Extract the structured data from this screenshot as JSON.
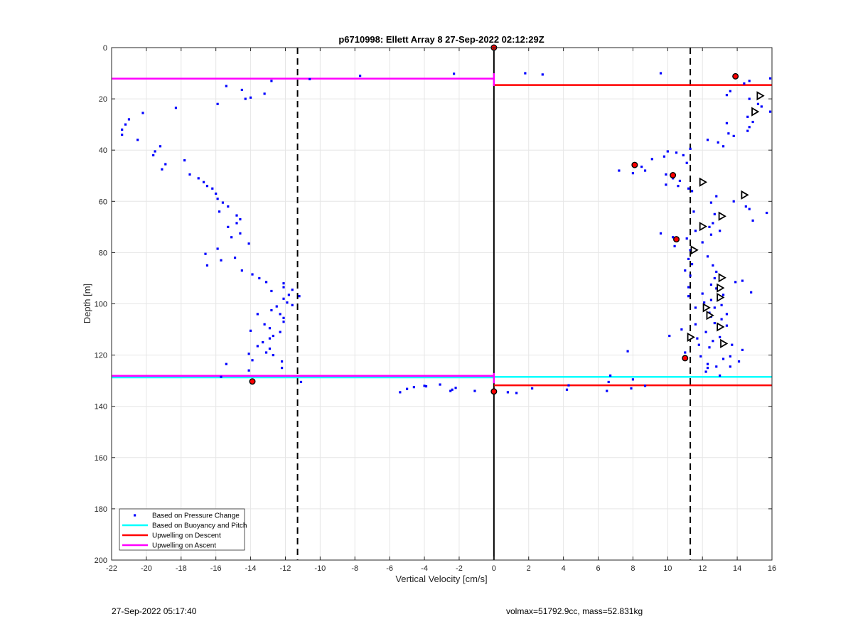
{
  "chart_data": {
    "type": "scatter",
    "title": "p6710998: Ellett Array 8 27-Sep-2022 02:12:29Z",
    "xlabel": "Vertical Velocity [cm/s]",
    "ylabel": "Depth [m]",
    "xlim": [
      -22,
      16
    ],
    "ylim": [
      0,
      200
    ],
    "y_reversed": true,
    "grid": true,
    "legend_position": "bottom-left",
    "x_ticks": [
      -22,
      -20,
      -18,
      -16,
      -14,
      -12,
      -10,
      -8,
      -6,
      -4,
      -2,
      0,
      2,
      4,
      6,
      8,
      10,
      12,
      14,
      16
    ],
    "y_ticks": [
      0,
      20,
      40,
      60,
      80,
      100,
      120,
      140,
      160,
      180,
      200
    ],
    "reference_lines": {
      "zero_line_x": 0,
      "dashed_lines_x": [
        -11.3,
        11.3
      ]
    },
    "series": [
      {
        "name": "Based on Pressure Change",
        "kind": "points",
        "color": "#0000ff",
        "points": [
          [
            -15.4,
            15
          ],
          [
            -14.5,
            16.5
          ],
          [
            -13.2,
            18
          ],
          [
            -14.3,
            20
          ],
          [
            -12.8,
            13
          ],
          [
            -14,
            19.5
          ],
          [
            -15.9,
            22
          ],
          [
            -20.2,
            25.5
          ],
          [
            -18.3,
            23.5
          ],
          [
            -21,
            28
          ],
          [
            -21.2,
            30
          ],
          [
            -21.4,
            32
          ],
          [
            -21.4,
            34
          ],
          [
            -20.5,
            36
          ],
          [
            -19.2,
            38.5
          ],
          [
            -19.5,
            40.5
          ],
          [
            -19.6,
            42
          ],
          [
            -18.9,
            45.5
          ],
          [
            -19.1,
            47.5
          ],
          [
            -17.8,
            44
          ],
          [
            -17.5,
            49.5
          ],
          [
            -17,
            51
          ],
          [
            -16.7,
            52.5
          ],
          [
            -16.5,
            54
          ],
          [
            -16.2,
            55
          ],
          [
            -16,
            57
          ],
          [
            -15.9,
            59
          ],
          [
            -15.6,
            60.5
          ],
          [
            -15.3,
            62
          ],
          [
            -15.8,
            64
          ],
          [
            -14.8,
            65.5
          ],
          [
            -14.6,
            67
          ],
          [
            -14.8,
            68.5
          ],
          [
            -15.3,
            70
          ],
          [
            -14.6,
            72.5
          ],
          [
            -15.1,
            74
          ],
          [
            -14.1,
            76.5
          ],
          [
            -15.9,
            78.5
          ],
          [
            -16.6,
            80.5
          ],
          [
            -15.7,
            83
          ],
          [
            -14.9,
            82
          ],
          [
            -16.5,
            85
          ],
          [
            -14.5,
            87
          ],
          [
            -13.9,
            88.5
          ],
          [
            -13.5,
            90
          ],
          [
            -13.1,
            91.5
          ],
          [
            -12.1,
            92
          ],
          [
            -12.1,
            93.5
          ],
          [
            -12.8,
            95
          ],
          [
            -11.6,
            94.5
          ],
          [
            -11.8,
            96.5
          ],
          [
            -11.2,
            97
          ],
          [
            -12.1,
            98
          ],
          [
            -11.9,
            99.5
          ],
          [
            -11.6,
            100.5
          ],
          [
            -12.5,
            101
          ],
          [
            -12.8,
            102.5
          ],
          [
            -12.3,
            104
          ],
          [
            -13.6,
            104
          ],
          [
            -12.1,
            105.5
          ],
          [
            -12.1,
            107
          ],
          [
            -13.2,
            108
          ],
          [
            -12.9,
            109.5
          ],
          [
            -14,
            110.5
          ],
          [
            -12.3,
            111
          ],
          [
            -12.7,
            112.5
          ],
          [
            -12.9,
            113.5
          ],
          [
            -13.3,
            115
          ],
          [
            -13.6,
            116.5
          ],
          [
            -12.9,
            117.5
          ],
          [
            -13.1,
            119
          ],
          [
            -14.1,
            119.5
          ],
          [
            -12.7,
            120
          ],
          [
            -13.9,
            122
          ],
          [
            -12.2,
            122.5
          ],
          [
            -15.4,
            123.5
          ],
          [
            -12.2,
            125
          ],
          [
            -14.1,
            126
          ],
          [
            -15.7,
            128.5
          ],
          [
            -11.1,
            130.5
          ],
          [
            -10.6,
            12.3
          ],
          [
            -7.7,
            11
          ],
          [
            -2.3,
            10.2
          ],
          [
            1.8,
            10
          ],
          [
            2.8,
            10.5
          ],
          [
            9.6,
            10
          ],
          [
            13.8,
            11
          ],
          [
            15.9,
            12
          ],
          [
            14.7,
            13
          ],
          [
            -5.4,
            134.5
          ],
          [
            -5,
            133.2
          ],
          [
            -4.6,
            132.5
          ],
          [
            -4,
            132
          ],
          [
            -3.9,
            132.2
          ],
          [
            -3.1,
            131.5
          ],
          [
            -2.4,
            133.5
          ],
          [
            -2.2,
            132.8
          ],
          [
            -2.5,
            134
          ],
          [
            -1.1,
            134
          ],
          [
            0.8,
            134.5
          ],
          [
            1.3,
            134.8
          ],
          [
            2.2,
            133
          ],
          [
            4.2,
            133.5
          ],
          [
            4.3,
            131.8
          ],
          [
            6.7,
            128
          ],
          [
            6.6,
            130.5
          ],
          [
            6.5,
            134
          ],
          [
            7.9,
            133
          ],
          [
            8,
            129.5
          ],
          [
            8.7,
            132
          ],
          [
            7.7,
            118.5
          ],
          [
            14.4,
            14
          ],
          [
            13.6,
            17
          ],
          [
            13.4,
            18.5
          ],
          [
            14.7,
            20
          ],
          [
            15.2,
            22
          ],
          [
            15.4,
            23
          ],
          [
            15.9,
            25
          ],
          [
            14.6,
            27
          ],
          [
            14.9,
            29
          ],
          [
            13.4,
            29.5
          ],
          [
            14.7,
            31
          ],
          [
            14.6,
            32.5
          ],
          [
            13.5,
            33.5
          ],
          [
            13.8,
            34.5
          ],
          [
            12.3,
            36
          ],
          [
            12.9,
            37
          ],
          [
            13.2,
            38.5
          ],
          [
            11.3,
            39.5
          ],
          [
            10,
            40.5
          ],
          [
            10.5,
            41
          ],
          [
            10.9,
            42
          ],
          [
            9.8,
            42.5
          ],
          [
            9.1,
            43.5
          ],
          [
            11.1,
            45
          ],
          [
            8.5,
            46.5
          ],
          [
            8.7,
            48
          ],
          [
            7.2,
            48
          ],
          [
            8,
            49
          ],
          [
            9.9,
            49.5
          ],
          [
            10.3,
            51
          ],
          [
            10.7,
            52
          ],
          [
            10.6,
            54
          ],
          [
            9.9,
            53.5
          ],
          [
            11.2,
            55
          ],
          [
            11.4,
            56
          ],
          [
            12.8,
            58
          ],
          [
            13.8,
            60
          ],
          [
            12.5,
            60.5
          ],
          [
            14.5,
            62
          ],
          [
            14.7,
            63
          ],
          [
            11.5,
            64
          ],
          [
            15.7,
            64.5
          ],
          [
            12.7,
            65
          ],
          [
            14.9,
            67.5
          ],
          [
            12.6,
            68.5
          ],
          [
            11.9,
            69.5
          ],
          [
            12.4,
            70
          ],
          [
            11.6,
            71.5
          ],
          [
            13,
            71.5
          ],
          [
            9.6,
            72.5
          ],
          [
            12.5,
            73
          ],
          [
            10.3,
            74
          ],
          [
            11.1,
            74.5
          ],
          [
            12,
            76
          ],
          [
            10.4,
            77.5
          ],
          [
            11.3,
            79
          ],
          [
            11.5,
            79.5
          ],
          [
            12.3,
            81.5
          ],
          [
            11.2,
            82.5
          ],
          [
            11.4,
            84.5
          ],
          [
            12.6,
            85
          ],
          [
            11,
            87
          ],
          [
            12.8,
            87.5
          ],
          [
            11.3,
            89
          ],
          [
            12.7,
            90
          ],
          [
            13.9,
            91.5
          ],
          [
            12.5,
            92.5
          ],
          [
            11.2,
            93.5
          ],
          [
            14.3,
            91
          ],
          [
            12.8,
            94
          ],
          [
            14.8,
            95.5
          ],
          [
            12,
            96
          ],
          [
            11.2,
            97
          ],
          [
            13.2,
            96.5
          ],
          [
            12.5,
            98.5
          ],
          [
            12.1,
            99.5
          ],
          [
            13.1,
            100.5
          ],
          [
            11.6,
            101.5
          ],
          [
            12.7,
            101.5
          ],
          [
            12.4,
            103.5
          ],
          [
            13.4,
            104
          ],
          [
            12.5,
            105
          ],
          [
            13.1,
            106
          ],
          [
            12.7,
            107.5
          ],
          [
            11.6,
            108
          ],
          [
            13.4,
            108.5
          ],
          [
            10.8,
            110
          ],
          [
            12.2,
            111
          ],
          [
            10.1,
            112.5
          ],
          [
            11.7,
            113.5
          ],
          [
            13,
            113
          ],
          [
            12.6,
            114.5
          ],
          [
            11.8,
            116
          ],
          [
            13.7,
            116
          ],
          [
            12.4,
            117
          ],
          [
            14.3,
            118
          ],
          [
            11,
            119
          ],
          [
            11.9,
            120.5
          ],
          [
            13.6,
            120.5
          ],
          [
            13.2,
            121.5
          ],
          [
            12.3,
            123.5
          ],
          [
            14.1,
            122.5
          ],
          [
            12.3,
            125
          ],
          [
            12.8,
            124.5
          ],
          [
            13.6,
            124.5
          ],
          [
            12.2,
            126.5
          ],
          [
            13,
            128
          ]
        ]
      },
      {
        "name": "Based on Buoyancy and Pitch",
        "kind": "steps",
        "color": "#00ffff",
        "segments": [
          {
            "x": [
              -22,
              0
            ],
            "y": 128.7
          },
          {
            "x": [
              0,
              16
            ],
            "y": 128.5
          }
        ]
      },
      {
        "name": "Upwelling on Descent",
        "kind": "steps",
        "color": "#ff0000",
        "segments": [
          {
            "x": [
              0,
              16
            ],
            "y": 14.6
          },
          {
            "x": [
              0,
              16
            ],
            "y": 131.8
          }
        ]
      },
      {
        "name": "Upwelling on Ascent",
        "kind": "steps",
        "color": "#ff00ff",
        "segments": [
          {
            "x": [
              -22,
              0
            ],
            "y": 12.1
          },
          {
            "x": [
              -22,
              0
            ],
            "y": 128.1
          }
        ]
      }
    ],
    "markers_red_dots": [
      [
        0,
        0
      ],
      [
        13.9,
        11.2
      ],
      [
        8.1,
        45.8
      ],
      [
        10.3,
        49.8
      ],
      [
        10.5,
        74.8
      ],
      [
        11,
        121.2
      ],
      [
        -13.9,
        130.3
      ],
      [
        0,
        134.2
      ]
    ],
    "markers_triangles": [
      [
        15.3,
        18.8
      ],
      [
        15,
        25
      ],
      [
        12,
        52.5
      ],
      [
        14.4,
        57.5
      ],
      [
        13.1,
        65.8
      ],
      [
        12,
        69.8
      ],
      [
        11.5,
        79
      ],
      [
        13.1,
        89.8
      ],
      [
        13,
        93.8
      ],
      [
        13,
        97.5
      ],
      [
        12.2,
        101.5
      ],
      [
        12.4,
        104.5
      ],
      [
        13,
        109
      ],
      [
        11.3,
        113
      ],
      [
        13.2,
        115.5
      ]
    ]
  },
  "footer": {
    "timestamp": "27-Sep-2022 05:17:40",
    "info": "volmax=51792.9cc, mass=52.831kg"
  }
}
